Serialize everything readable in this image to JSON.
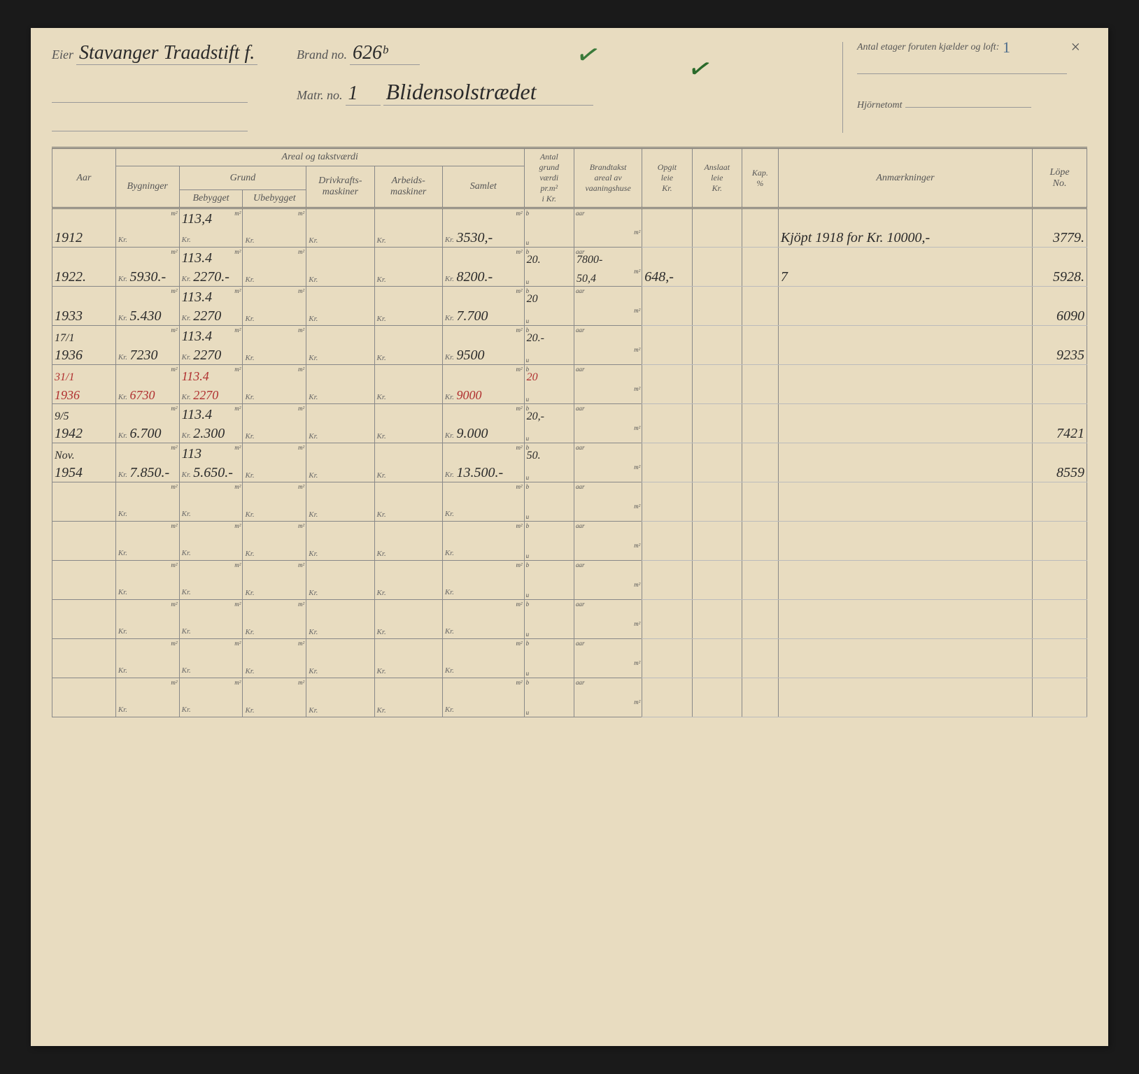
{
  "header": {
    "eier_label": "Eier",
    "eier_value": "Stavanger Traadstift f.",
    "brandno_label": "Brand no.",
    "brandno_value": "626ᵇ",
    "matrno_label": "Matr. no.",
    "matrno_value": "1",
    "street_value": "Blidensolstrædet",
    "antal_etager_label": "Antal etager foruten kjælder og loft:",
    "hjornetomt_label": "Hjörnetomt"
  },
  "columns": {
    "aar": "Aar",
    "areal_group": "Areal  og  takstværdi",
    "grund_group": "Grund",
    "bygninger": "Bygninger",
    "bebygget": "Bebygget",
    "ubebygget": "Ubebygget",
    "drivkraft": "Drivkrafts-\nmaskiner",
    "arbeids": "Arbeids-\nmaskiner",
    "samlet": "Samlet",
    "antal": "Antal\ngrund\nværdi\npr.m²\ni Kr.",
    "brandtakst": "Brandtakst\nareal av\nvaaningshuse",
    "opgit": "Opgit\nleie\nKr.",
    "anslaat": "Anslaat\nleie\nKr.",
    "kap": "Kap.\n%",
    "anmerk": "Anmærkninger",
    "lope": "Löpe\nNo."
  },
  "rows": [
    {
      "aar": "1912",
      "bebygget_m2": "113,4",
      "samlet": "3530,-",
      "anmerk": "Kjöpt 1918 for Kr. 10000,-",
      "lope": "3779."
    },
    {
      "aar": "1922.",
      "bygninger": "5930.-",
      "bebygget_m2": "113.4",
      "bebygget_kr": "2270.-",
      "samlet": "8200.-",
      "antal_b": "20.",
      "brand_aar": "7800-",
      "brand_m2": "50,4",
      "opgit": "648,-",
      "anmerk": "7",
      "lope": "5928."
    },
    {
      "aar": "1933",
      "bygninger": "5.430",
      "bebygget_m2": "113.4",
      "bebygget_kr": "2270",
      "samlet": "7.700",
      "antal_b": "20",
      "lope": "6090"
    },
    {
      "aar_pre": "17/1",
      "aar": "1936",
      "bygninger": "7230",
      "bebygget_m2": "113.4",
      "bebygget_kr": "2270",
      "samlet": "9500",
      "antal_b": "20.-",
      "lope": "9235"
    },
    {
      "aar_pre": "31/1",
      "aar": "1936",
      "bygninger": "6730",
      "bebygget_m2": "113.4",
      "bebygget_kr": "2270",
      "samlet": "9000",
      "antal_b": "20",
      "red": true
    },
    {
      "aar_pre": "9/5",
      "aar": "1942",
      "bygninger": "6.700",
      "bebygget_m2": "113.4",
      "bebygget_kr": "2.300",
      "samlet": "9.000",
      "antal_b": "20,-",
      "lope": "7421"
    },
    {
      "aar_pre": "Nov.",
      "aar": "1954",
      "bygninger": "7.850.-",
      "bebygget_m2": "113",
      "bebygget_kr": "5.650.-",
      "samlet": "13.500.-",
      "antal_b": "50.",
      "lope": "8559"
    },
    {},
    {},
    {},
    {},
    {},
    {}
  ],
  "units": {
    "m2": "m²",
    "kr": "Kr.",
    "b": "b",
    "u": "u",
    "aar": "aar"
  },
  "colors": {
    "paper": "#e8dcc0",
    "line": "#888",
    "ink": "#2a2a2a",
    "red_ink": "#b03030",
    "print": "#555"
  }
}
